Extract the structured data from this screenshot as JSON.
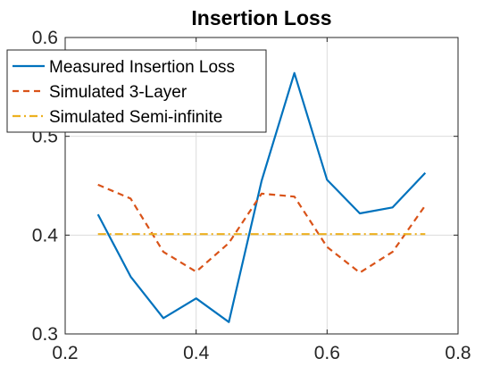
{
  "chart_data": {
    "type": "line",
    "title": "Insertion Loss",
    "xlabel": "",
    "ylabel": "",
    "xlim": [
      0.2,
      0.8
    ],
    "ylim": [
      0.3,
      0.6
    ],
    "xticks": [
      0.2,
      0.4,
      0.6,
      0.8
    ],
    "yticks": [
      0.3,
      0.4,
      0.5,
      0.6
    ],
    "xtick_labels": [
      "0.2",
      "0.4",
      "0.6",
      "0.8"
    ],
    "ytick_labels": [
      "0.3",
      "0.4",
      "0.5",
      "0.6"
    ],
    "grid": true,
    "legend_position": "top-left",
    "series": [
      {
        "name": "Measured Insertion Loss",
        "color": "#0072BD",
        "style": "solid",
        "x": [
          0.25,
          0.3,
          0.35,
          0.4,
          0.45,
          0.5,
          0.55,
          0.6,
          0.65,
          0.7,
          0.75
        ],
        "y": [
          0.421,
          0.358,
          0.316,
          0.336,
          0.312,
          0.455,
          0.564,
          0.456,
          0.422,
          0.428,
          0.463
        ]
      },
      {
        "name": "Simulated 3-Layer",
        "color": "#D95319",
        "style": "dashed",
        "x": [
          0.25,
          0.3,
          0.35,
          0.4,
          0.45,
          0.5,
          0.55,
          0.6,
          0.65,
          0.7,
          0.75
        ],
        "y": [
          0.451,
          0.437,
          0.383,
          0.363,
          0.392,
          0.442,
          0.439,
          0.388,
          0.362,
          0.383,
          0.43
        ]
      },
      {
        "name": "Simulated Semi-infinite",
        "color": "#EDB120",
        "style": "dashdot",
        "x": [
          0.25,
          0.75
        ],
        "y": [
          0.401,
          0.401
        ]
      }
    ]
  }
}
